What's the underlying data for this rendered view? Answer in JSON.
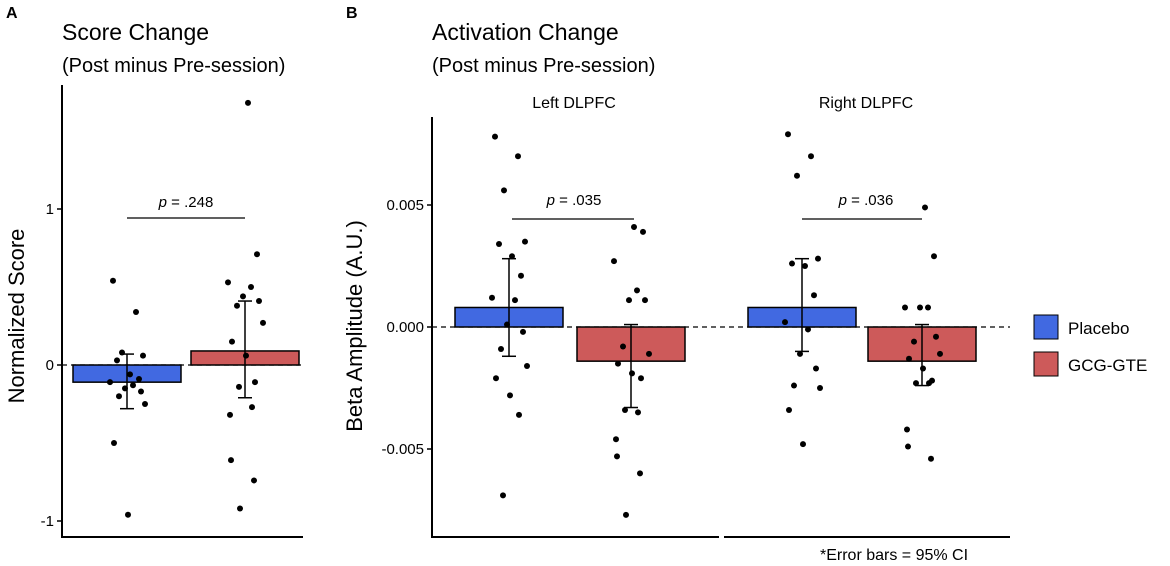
{
  "panel_a": {
    "letter": "A",
    "title": "Score Change",
    "subtitle": "(Post minus Pre-session)",
    "ylabel": "Normalized Score",
    "p_label": "p",
    "p_value": " = .248"
  },
  "panel_b": {
    "letter": "B",
    "title": "Activation Change",
    "subtitle": "(Post minus Pre-session)",
    "ylabel": "Beta Amplitude (A.U.)",
    "facet_left": "Left DLPFC",
    "facet_right": "Right DLPFC",
    "p_label": "p",
    "p_left": " = .035",
    "p_right": " = .036",
    "footnote": "*Error bars = 95% CI"
  },
  "legend": {
    "items": [
      {
        "label": "Placebo",
        "color": "#4169e1"
      },
      {
        "label": "GCG-GTE",
        "color": "#cd5a5a"
      }
    ]
  },
  "chart_data": [
    {
      "type": "bar",
      "title": "Score Change (Post minus Pre-session)",
      "xlabel": "",
      "ylabel": "Normalized Score",
      "ylim": [
        -1.1,
        1.8
      ],
      "yticks": [
        -1,
        0,
        1
      ],
      "ytick_labels": [
        "-1",
        "0",
        "1"
      ],
      "categories": [
        "Placebo",
        "GCG-GTE"
      ],
      "values": [
        -0.11,
        0.09
      ],
      "ci_low": [
        -0.28,
        -0.21
      ],
      "ci_high": [
        0.07,
        0.41
      ],
      "points": [
        [
          0.54,
          0.34,
          0.08,
          0.06,
          0.03,
          -0.06,
          -0.09,
          -0.11,
          -0.13,
          -0.15,
          -0.17,
          -0.2,
          -0.25,
          -0.5,
          -0.96
        ],
        [
          1.68,
          0.71,
          0.53,
          0.5,
          0.44,
          0.41,
          0.38,
          0.27,
          0.15,
          0.06,
          -0.11,
          -0.14,
          -0.27,
          -0.32,
          -0.61,
          -0.74,
          -0.92
        ]
      ],
      "annotation": "p = .248"
    },
    {
      "type": "bar",
      "title": "Activation Change (Post minus Pre-session)",
      "xlabel": "",
      "ylabel": "Beta Amplitude (A.U.)",
      "ylim": [
        -0.0085,
        0.0085
      ],
      "yticks": [
        -0.005,
        0,
        0.005
      ],
      "ytick_labels": [
        "-0.005",
        "0.000",
        "0.005"
      ],
      "facets": [
        {
          "name": "Left DLPFC",
          "categories": [
            "Placebo",
            "GCG-GTE"
          ],
          "values": [
            0.0008,
            -0.0014
          ],
          "ci_low": [
            -0.0012,
            -0.0033
          ],
          "ci_high": [
            0.0028,
            0.0001
          ],
          "points": [
            [
              0.0078,
              0.007,
              0.0056,
              0.0035,
              0.0034,
              0.0029,
              0.0021,
              0.0012,
              0.0011,
              0.0001,
              -0.0002,
              -0.0009,
              -0.0016,
              -0.0021,
              -0.0028,
              -0.0036,
              -0.0069
            ],
            [
              0.0041,
              0.0039,
              0.0027,
              0.0015,
              0.0011,
              0.0011,
              -0.0008,
              -0.0011,
              -0.0015,
              -0.0019,
              -0.0021,
              -0.0034,
              -0.0035,
              -0.0046,
              -0.0053,
              -0.006,
              -0.0077
            ]
          ],
          "annotation": "p = .035"
        },
        {
          "name": "Right DLPFC",
          "categories": [
            "Placebo",
            "GCG-GTE"
          ],
          "values": [
            0.0008,
            -0.0014
          ],
          "ci_low": [
            -0.001,
            -0.0024
          ],
          "ci_high": [
            0.0028,
            0.0001
          ],
          "points": [
            [
              0.0079,
              0.007,
              0.0062,
              0.0028,
              0.0026,
              0.0025,
              0.0013,
              0.0002,
              -0.0001,
              -0.0011,
              -0.0017,
              -0.0024,
              -0.0025,
              -0.0034,
              -0.0048
            ],
            [
              0.0049,
              0.0029,
              0.0008,
              0.0008,
              0.0008,
              -0.0004,
              -0.0006,
              -0.0011,
              -0.0013,
              -0.0017,
              -0.0022,
              -0.0023,
              -0.0023,
              -0.0042,
              -0.0049,
              -0.0054
            ]
          ],
          "annotation": "p = .036"
        }
      ],
      "legend": [
        "Placebo",
        "GCG-GTE"
      ],
      "footnote": "*Error bars = 95% CI"
    }
  ]
}
